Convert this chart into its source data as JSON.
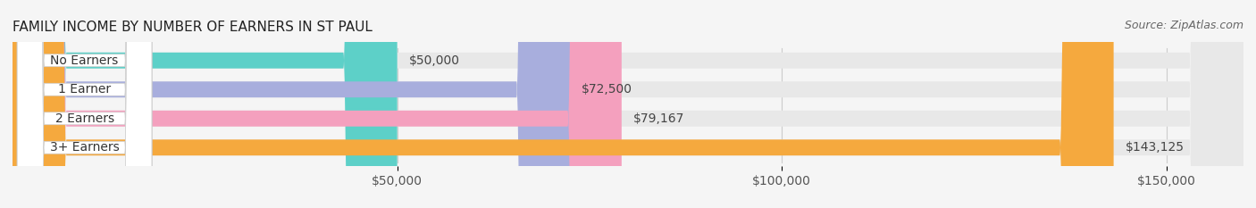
{
  "title": "FAMILY INCOME BY NUMBER OF EARNERS IN ST PAUL",
  "source": "Source: ZipAtlas.com",
  "categories": [
    "No Earners",
    "1 Earner",
    "2 Earners",
    "3+ Earners"
  ],
  "values": [
    50000,
    72500,
    79167,
    143125
  ],
  "value_labels": [
    "$50,000",
    "$72,500",
    "$79,167",
    "$143,125"
  ],
  "bar_colors": [
    "#5dd0c8",
    "#a8aedd",
    "#f4a0be",
    "#f5a93e"
  ],
  "background_color": "#f5f5f5",
  "bar_bg_color": "#e8e8e8",
  "x_min": 0,
  "x_max": 160000,
  "x_ticks": [
    50000,
    100000,
    150000
  ],
  "x_tick_labels": [
    "$50,000",
    "$100,000",
    "$150,000"
  ],
  "title_fontsize": 11,
  "label_fontsize": 10,
  "value_fontsize": 10,
  "source_fontsize": 9,
  "bar_height": 0.55,
  "fig_width": 14.06,
  "fig_height": 2.33
}
